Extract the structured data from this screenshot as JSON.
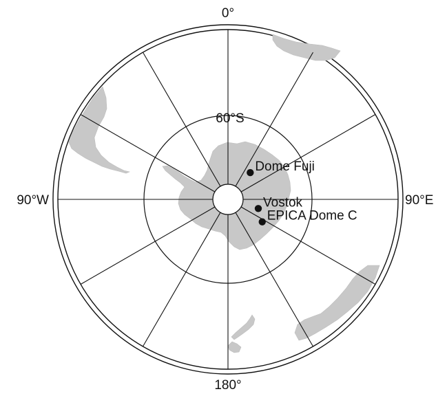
{
  "map": {
    "projection": "south-polar-stereographic",
    "colors": {
      "land": "#c8c8c8",
      "ocean": "#ffffff",
      "graticule": "#111111",
      "site_marker": "#111111"
    },
    "graticule": {
      "meridian_step_deg": 30,
      "latitude_circles": [
        "60°S"
      ]
    },
    "longitude_labels": {
      "top": "0°",
      "right": "90°E",
      "bottom": "180°",
      "left": "90°W"
    },
    "latitude_label": "60°S",
    "sites": [
      {
        "name": "Dome Fuji",
        "lat": -77.32,
        "lon": 39.7
      },
      {
        "name": "Vostok",
        "lat": -78.47,
        "lon": 106.8
      },
      {
        "name": "EPICA Dome C",
        "lat": -75.1,
        "lon": 123.35
      }
    ],
    "landmasses": [
      "Antarctica",
      "South America",
      "Africa",
      "Australia",
      "New Zealand"
    ]
  }
}
